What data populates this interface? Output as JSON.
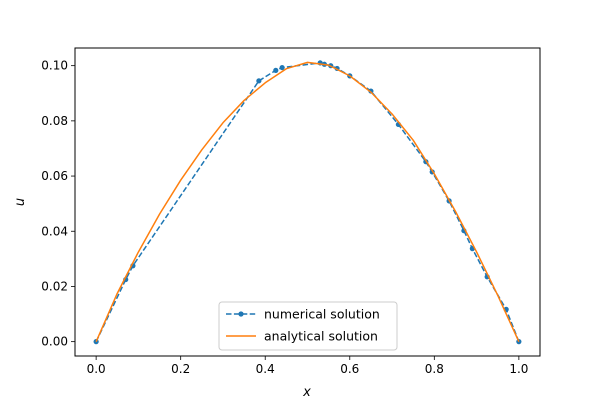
{
  "chart_data": {
    "type": "line",
    "xlabel": "x",
    "ylabel": "u",
    "xlim": [
      -0.05,
      1.05
    ],
    "ylim": [
      -0.0052,
      0.1064
    ],
    "x_ticks": [
      0.0,
      0.2,
      0.4,
      0.6,
      0.8,
      1.0
    ],
    "x_tick_labels": [
      "0.0",
      "0.2",
      "0.4",
      "0.6",
      "0.8",
      "1.0"
    ],
    "y_ticks": [
      0.0,
      0.02,
      0.04,
      0.06,
      0.08,
      0.1
    ],
    "y_tick_labels": [
      "0.00",
      "0.02",
      "0.04",
      "0.06",
      "0.08",
      "0.10"
    ],
    "grid": false,
    "legend_position": "lower center",
    "series": [
      {
        "name": "numerical solution",
        "style": "dashed line with circle markers",
        "color": "#1f77b4",
        "x": [
          0.0,
          0.07,
          0.087,
          0.385,
          0.425,
          0.44,
          0.53,
          0.54,
          0.555,
          0.57,
          0.6,
          0.65,
          0.715,
          0.78,
          0.795,
          0.835,
          0.87,
          0.89,
          0.925,
          0.97,
          1.0
        ],
        "y": [
          0.0,
          0.0225,
          0.0275,
          0.0945,
          0.0983,
          0.0993,
          0.101,
          0.1005,
          0.1,
          0.099,
          0.0963,
          0.0908,
          0.0787,
          0.0652,
          0.0615,
          0.051,
          0.0402,
          0.0337,
          0.0235,
          0.0117,
          0.0
        ]
      },
      {
        "name": "analytical solution",
        "style": "solid line",
        "color": "#ff7f0e",
        "x": [
          0.0,
          0.05,
          0.1,
          0.15,
          0.2,
          0.25,
          0.3,
          0.35,
          0.4,
          0.45,
          0.5,
          0.55,
          0.6,
          0.65,
          0.7,
          0.75,
          0.8,
          0.85,
          0.9,
          0.95,
          1.0
        ],
        "y": [
          0.0,
          0.0175,
          0.0325,
          0.0462,
          0.0585,
          0.0695,
          0.0793,
          0.0874,
          0.0938,
          0.0989,
          0.1012,
          0.1002,
          0.0963,
          0.0904,
          0.0825,
          0.073,
          0.0608,
          0.0472,
          0.0325,
          0.0168,
          0.0
        ]
      }
    ]
  }
}
